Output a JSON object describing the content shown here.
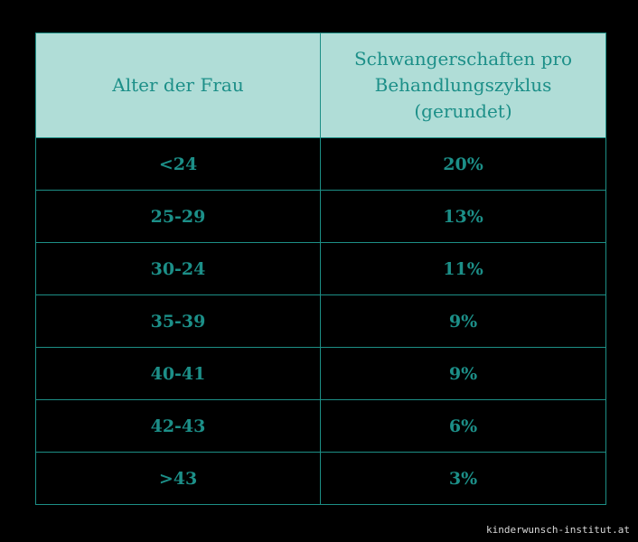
{
  "table": {
    "headers": [
      "Alter der Frau",
      "Schwangerschaften pro Behandlungszyklus (gerundet)"
    ],
    "header_lines": {
      "col2": [
        "Schwangerschaften pro",
        "Behandlungszyklus",
        "(gerundet)"
      ]
    },
    "rows": [
      {
        "age": "<24",
        "rate": "20%"
      },
      {
        "age": "25-29",
        "rate": "13%"
      },
      {
        "age": "30-24",
        "rate": "11%"
      },
      {
        "age": "35-39",
        "rate": "9%"
      },
      {
        "age": "40-41",
        "rate": "9%"
      },
      {
        "age": "42-43",
        "rate": "6%"
      },
      {
        "age": ">43",
        "rate": "3%"
      }
    ]
  },
  "footer": {
    "source": "kinderwunsch-institut.at"
  },
  "colors": {
    "background": "#000000",
    "header_bg": "#b0ddd7",
    "accent_text": "#1c8f88",
    "border": "#1d8f86"
  }
}
